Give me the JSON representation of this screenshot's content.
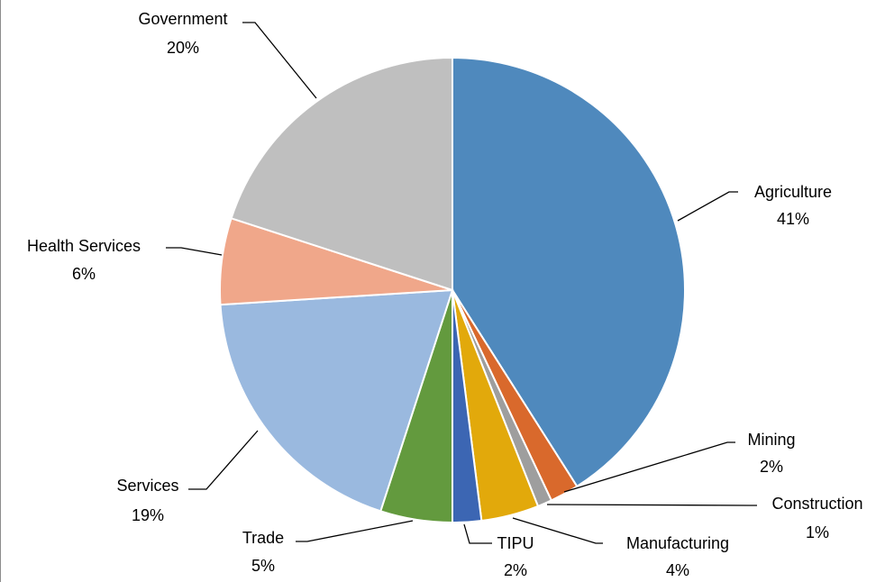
{
  "chart_data": {
    "type": "pie",
    "start_angle_deg": 0,
    "direction": "clockwise",
    "slices": [
      {
        "label": "Agriculture",
        "value": 41,
        "pct_text": "41%",
        "color": "#4F89BD"
      },
      {
        "label": "Mining",
        "value": 2,
        "pct_text": "2%",
        "color": "#D9692C"
      },
      {
        "label": "Construction",
        "value": 1,
        "pct_text": "1%",
        "color": "#9E9E9E"
      },
      {
        "label": "Manufacturing",
        "value": 4,
        "pct_text": "4%",
        "color": "#E2A90B"
      },
      {
        "label": "TIPU",
        "value": 2,
        "pct_text": "2%",
        "color": "#3C66B3"
      },
      {
        "label": "Trade",
        "value": 5,
        "pct_text": "5%",
        "color": "#639A3E"
      },
      {
        "label": "Services",
        "value": 19,
        "pct_text": "19%",
        "color": "#9AB9DF"
      },
      {
        "label": "Health Services",
        "value": 6,
        "pct_text": "6%",
        "color": "#F0A78A"
      },
      {
        "label": "Government",
        "value": 20,
        "pct_text": "20%",
        "color": "#BFBFBF"
      }
    ]
  }
}
